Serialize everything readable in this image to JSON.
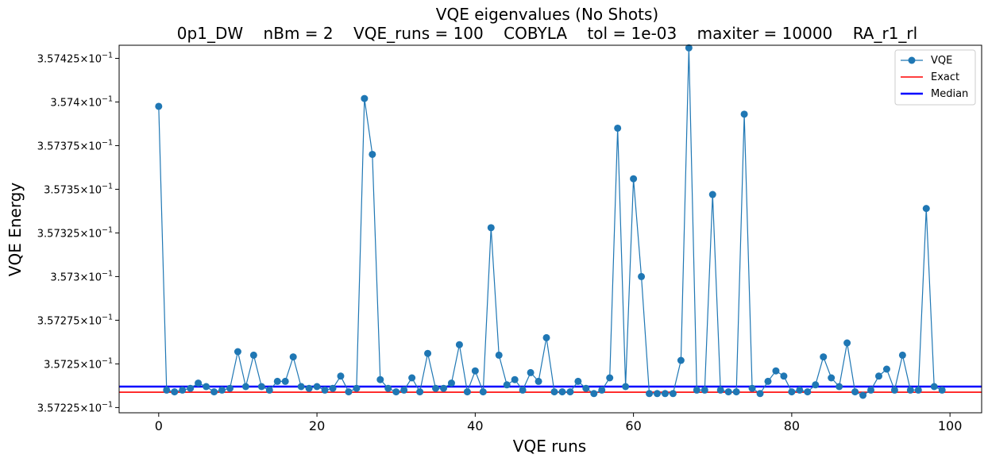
{
  "chart_data": {
    "type": "line",
    "title": "VQE eigenvalues (No Shots)",
    "subtitle": "0p1_DW    nBm = 2    VQE_runs = 100    COBYLA    tol = 1e-03    maxiter = 10000    RA_r1_rl",
    "xlabel": "VQE runs",
    "ylabel": "VQE Energy",
    "xlim": [
      -5,
      104
    ],
    "ylim": [
      0.357222,
      0.3574325
    ],
    "log_y": true,
    "grid": false,
    "legend_position": "top-right",
    "xticks": [
      {
        "value": 0,
        "label": "0"
      },
      {
        "value": 20,
        "label": "20"
      },
      {
        "value": 40,
        "label": "40"
      },
      {
        "value": 60,
        "label": "60"
      },
      {
        "value": 80,
        "label": "80"
      },
      {
        "value": 100,
        "label": "100"
      }
    ],
    "yticks": [
      {
        "value": 0.357225,
        "mantissa": "3.57225",
        "exponent": "−1"
      },
      {
        "value": 0.35725,
        "mantissa": "3.5725",
        "exponent": "−1"
      },
      {
        "value": 0.357275,
        "mantissa": "3.57275",
        "exponent": "−1"
      },
      {
        "value": 0.3573,
        "mantissa": "3.573",
        "exponent": "−1"
      },
      {
        "value": 0.357325,
        "mantissa": "3.57325",
        "exponent": "−1"
      },
      {
        "value": 0.35735,
        "mantissa": "3.5735",
        "exponent": "−1"
      },
      {
        "value": 0.357375,
        "mantissa": "3.57375",
        "exponent": "−1"
      },
      {
        "value": 0.3574,
        "mantissa": "3.574",
        "exponent": "−1"
      },
      {
        "value": 0.357425,
        "mantissa": "3.57425",
        "exponent": "−1"
      }
    ],
    "series": [
      {
        "name": "VQE",
        "color": "#1f77b4",
        "x": [
          0,
          1,
          2,
          3,
          4,
          5,
          6,
          7,
          8,
          9,
          10,
          11,
          12,
          13,
          14,
          15,
          16,
          17,
          18,
          19,
          20,
          21,
          22,
          23,
          24,
          25,
          26,
          27,
          28,
          29,
          30,
          31,
          32,
          33,
          34,
          35,
          36,
          37,
          38,
          39,
          40,
          41,
          42,
          43,
          44,
          45,
          46,
          47,
          48,
          49,
          50,
          51,
          52,
          53,
          54,
          55,
          56,
          57,
          58,
          59,
          60,
          61,
          62,
          63,
          64,
          65,
          66,
          67,
          68,
          69,
          70,
          71,
          72,
          73,
          74,
          75,
          76,
          77,
          78,
          79,
          80,
          81,
          82,
          83,
          84,
          85,
          86,
          87,
          88,
          89,
          90,
          91,
          92,
          93,
          94,
          95,
          96,
          97,
          98,
          99
        ],
        "values": [
          0.3573975,
          0.357235,
          0.357234,
          0.357235,
          0.357236,
          0.357239,
          0.357237,
          0.357234,
          0.357235,
          0.357236,
          0.357257,
          0.357237,
          0.357255,
          0.357237,
          0.357235,
          0.35724,
          0.35724,
          0.357254,
          0.357237,
          0.357236,
          0.357237,
          0.357235,
          0.357236,
          0.357243,
          0.357234,
          0.357236,
          0.357402,
          0.35737,
          0.357241,
          0.357236,
          0.357234,
          0.357235,
          0.357242,
          0.357234,
          0.357256,
          0.357236,
          0.357236,
          0.357239,
          0.357261,
          0.357234,
          0.357246,
          0.357234,
          0.357328,
          0.357255,
          0.357238,
          0.357241,
          0.357235,
          0.357245,
          0.35724,
          0.357265,
          0.357234,
          0.357234,
          0.357234,
          0.35724,
          0.357236,
          0.357233,
          0.357235,
          0.357242,
          0.357385,
          0.357237,
          0.357356,
          0.3573,
          0.357233,
          0.357233,
          0.357233,
          0.357233,
          0.357252,
          0.357431,
          0.357235,
          0.357235,
          0.357347,
          0.357235,
          0.357234,
          0.357234,
          0.357393,
          0.357236,
          0.357233,
          0.35724,
          0.357246,
          0.357243,
          0.357234,
          0.357235,
          0.357234,
          0.357238,
          0.357254,
          0.357242,
          0.357237,
          0.357262,
          0.357234,
          0.357232,
          0.357235,
          0.357243,
          0.357247,
          0.357235,
          0.357255,
          0.357235,
          0.357235,
          0.357339,
          0.357237,
          0.357235
        ]
      },
      {
        "name": "Exact",
        "color": "#ff0000",
        "value": 0.3572338
      },
      {
        "name": "Median",
        "color": "#0000ff",
        "value": 0.357237
      }
    ]
  }
}
